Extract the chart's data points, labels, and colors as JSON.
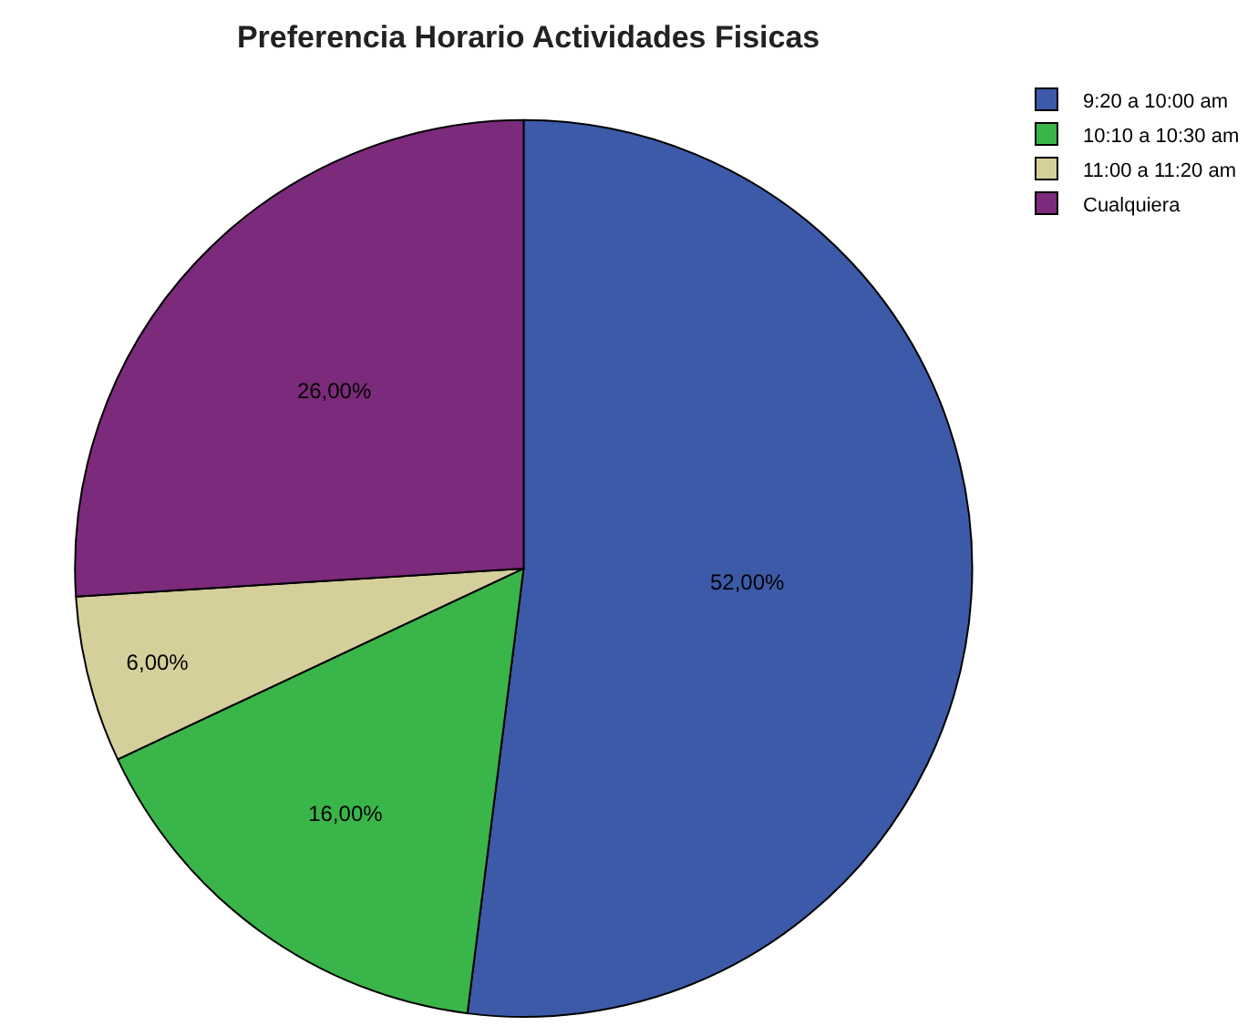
{
  "chart_data": {
    "type": "pie",
    "title": "Preferencia Horario Actividades Fisicas",
    "categories": [
      "9:20 a 10:00 am",
      "10:10 a 10:30 am",
      "11:00 a 11:20 am",
      "Cualquiera"
    ],
    "values": [
      52,
      16,
      6,
      26
    ],
    "colors": [
      "#3c5aa8",
      "#3ab54a",
      "#d5cf9b",
      "#7c2a7b"
    ],
    "value_labels": [
      "52,00%",
      "16,00%",
      "6,00%",
      "26,00%"
    ],
    "legend": "top right"
  }
}
